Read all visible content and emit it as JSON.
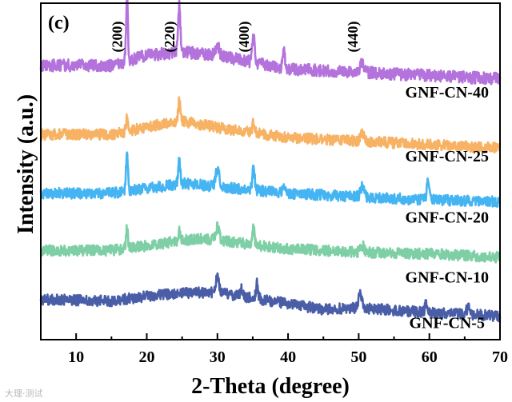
{
  "chart_data": {
    "type": "line",
    "panel_label": "(c)",
    "title": "",
    "xlabel": "2-Theta (degree)",
    "ylabel": "Intensity (a.u.)",
    "xlim": [
      5,
      70
    ],
    "xticks": [
      10,
      20,
      30,
      40,
      50,
      60,
      70
    ],
    "ylim": [
      0,
      1
    ],
    "y_units": "arbitrary (stacked, offset)",
    "peak_labels": [
      {
        "text": "(200)",
        "x": 17.2
      },
      {
        "text": "(220)",
        "x": 24.6
      },
      {
        "text": "(400)",
        "x": 35.1
      },
      {
        "text": "(440)",
        "x": 50.5
      }
    ],
    "series": [
      {
        "name": "GNF-CN-40",
        "color": "#b472dc",
        "baseline": 0.805,
        "noise": 0.018,
        "label_x": 62.5,
        "label_y": 0.72,
        "shape": [
          [
            5,
            0.01
          ],
          [
            15,
            0.01
          ],
          [
            20,
            0.04
          ],
          [
            25,
            0.05
          ],
          [
            30,
            0.04
          ],
          [
            40,
            0.0
          ],
          [
            50,
            -0.01
          ],
          [
            60,
            -0.02
          ],
          [
            70,
            -0.03
          ]
        ],
        "peaks": [
          [
            17.2,
            0.19,
            0.25
          ],
          [
            24.6,
            0.14,
            0.3
          ],
          [
            30.0,
            0.03,
            0.5
          ],
          [
            35.1,
            0.09,
            0.3
          ],
          [
            39.4,
            0.05,
            0.3
          ],
          [
            50.5,
            0.03,
            0.5
          ]
        ]
      },
      {
        "name": "GNF-CN-25",
        "color": "#f7b264",
        "baseline": 0.61,
        "noise": 0.016,
        "label_x": 62.5,
        "label_y": 0.53,
        "shape": [
          [
            5,
            0.0
          ],
          [
            15,
            0.0
          ],
          [
            22,
            0.03
          ],
          [
            25,
            0.04
          ],
          [
            30,
            0.02
          ],
          [
            40,
            -0.01
          ],
          [
            50,
            -0.02
          ],
          [
            60,
            -0.03
          ],
          [
            70,
            -0.04
          ]
        ],
        "peaks": [
          [
            17.2,
            0.04,
            0.25
          ],
          [
            24.6,
            0.06,
            0.3
          ],
          [
            35.1,
            0.03,
            0.3
          ],
          [
            50.5,
            0.02,
            0.5
          ]
        ]
      },
      {
        "name": "GNF-CN-20",
        "color": "#45b4f2",
        "baseline": 0.435,
        "noise": 0.016,
        "label_x": 62.5,
        "label_y": 0.348,
        "shape": [
          [
            5,
            0.0
          ],
          [
            15,
            0.0
          ],
          [
            22,
            0.02
          ],
          [
            25,
            0.03
          ],
          [
            30,
            0.02
          ],
          [
            40,
            0.0
          ],
          [
            50,
            -0.01
          ],
          [
            60,
            -0.02
          ],
          [
            70,
            -0.025
          ]
        ],
        "peaks": [
          [
            17.2,
            0.12,
            0.25
          ],
          [
            24.6,
            0.07,
            0.3
          ],
          [
            30.0,
            0.05,
            0.5
          ],
          [
            35.1,
            0.08,
            0.3
          ],
          [
            39.4,
            0.02,
            0.3
          ],
          [
            50.5,
            0.03,
            0.5
          ],
          [
            59.8,
            0.05,
            0.35
          ]
        ]
      },
      {
        "name": "GNF-CN-10",
        "color": "#7ecfa5",
        "baseline": 0.265,
        "noise": 0.016,
        "label_x": 62.5,
        "label_y": 0.17,
        "shape": [
          [
            5,
            0.0
          ],
          [
            15,
            0.0
          ],
          [
            22,
            0.02
          ],
          [
            27,
            0.035
          ],
          [
            30,
            0.03
          ],
          [
            40,
            0.005
          ],
          [
            50,
            -0.005
          ],
          [
            60,
            -0.01
          ],
          [
            70,
            -0.02
          ]
        ],
        "peaks": [
          [
            17.2,
            0.06,
            0.25
          ],
          [
            24.6,
            0.03,
            0.3
          ],
          [
            30.0,
            0.04,
            0.5
          ],
          [
            35.1,
            0.05,
            0.3
          ],
          [
            50.5,
            0.02,
            0.5
          ]
        ]
      },
      {
        "name": "GNF-CN-5",
        "color": "#4a5ea8",
        "baseline": 0.12,
        "noise": 0.016,
        "label_x": 62.5,
        "label_y": 0.035,
        "shape": [
          [
            5,
            0.0
          ],
          [
            15,
            -0.005
          ],
          [
            22,
            0.015
          ],
          [
            27,
            0.02
          ],
          [
            30,
            0.02
          ],
          [
            36,
            0.0
          ],
          [
            45,
            -0.03
          ],
          [
            50,
            -0.025
          ],
          [
            60,
            -0.04
          ],
          [
            70,
            -0.05
          ]
        ],
        "peaks": [
          [
            30.0,
            0.05,
            0.4
          ],
          [
            33.4,
            0.03,
            0.3
          ],
          [
            35.6,
            0.05,
            0.3
          ],
          [
            50.2,
            0.04,
            0.5
          ],
          [
            59.6,
            0.03,
            0.4
          ],
          [
            65.5,
            0.02,
            0.5
          ]
        ]
      }
    ]
  },
  "watermark": "大理·测试"
}
